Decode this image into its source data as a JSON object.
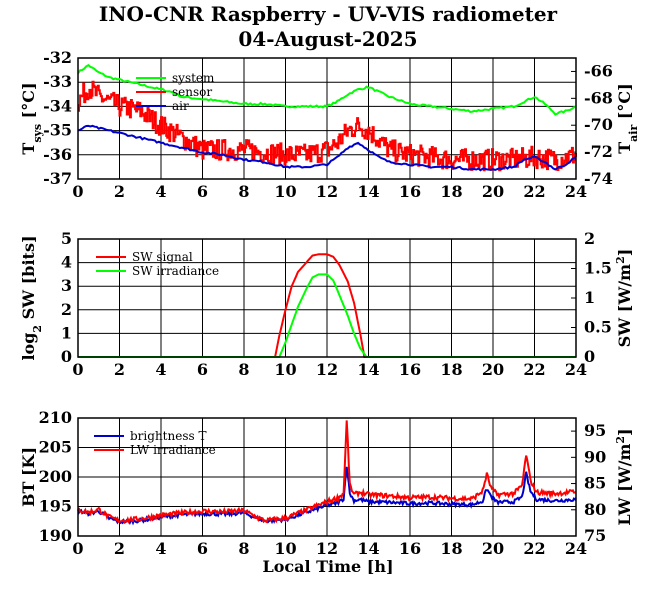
{
  "title": "INO-CNR Raspberry - UV-VIS radiometer",
  "date": "04-August-2025",
  "colors": {
    "red": "#ff0000",
    "green": "#00ff00",
    "blue": "#0000cc",
    "grid": "#000000"
  },
  "chart_data": [
    {
      "type": "line",
      "id": "temperature",
      "ylabel_left": {
        "main": "T",
        "sub": "sys",
        "unit": " [°C]"
      },
      "ylabel_right": {
        "main": "T",
        "sub": "air",
        "unit": " [°C]"
      },
      "xlim": [
        0,
        24
      ],
      "ylim_left": [
        -37,
        -32
      ],
      "ylim_right": [
        -74,
        -65
      ],
      "xticks": [
        "0",
        "2",
        "4",
        "6",
        "8",
        "10",
        "12",
        "14",
        "16",
        "18",
        "20",
        "22",
        "24"
      ],
      "yticks_left": [
        "-32",
        "-33",
        "-34",
        "-35",
        "-36",
        "-37"
      ],
      "yticks_right": [
        "-66",
        "-68",
        "-70",
        "-72",
        "-74"
      ],
      "legend": [
        "system",
        "sensor",
        "air"
      ],
      "series": [
        {
          "name": "system",
          "color": "#00ff00",
          "axis": "left",
          "x": [
            0,
            0.5,
            1,
            1.5,
            2,
            3,
            4,
            4.5,
            5,
            6,
            7,
            8,
            9,
            10,
            11,
            12,
            12.5,
            13,
            13.5,
            14,
            14.5,
            15,
            16,
            17,
            18,
            19,
            20,
            21,
            21.5,
            22,
            22.5,
            23,
            23.5,
            24
          ],
          "y": [
            -32.6,
            -32.3,
            -32.6,
            -32.8,
            -32.9,
            -33.1,
            -33.3,
            -33.4,
            -33.6,
            -33.7,
            -33.8,
            -33.9,
            -33.9,
            -34.0,
            -34.0,
            -34.0,
            -33.8,
            -33.5,
            -33.3,
            -33.2,
            -33.4,
            -33.6,
            -33.9,
            -34.0,
            -34.1,
            -34.2,
            -34.1,
            -34.0,
            -33.8,
            -33.6,
            -33.9,
            -34.3,
            -34.2,
            -34.0
          ]
        },
        {
          "name": "sensor",
          "color": "#ff0000",
          "axis": "left",
          "x": [
            0,
            0.5,
            1,
            1.5,
            2,
            3,
            4,
            5,
            6,
            7,
            8,
            9,
            10,
            11,
            12,
            12.5,
            13,
            13.5,
            14,
            14.5,
            15,
            16,
            17,
            18,
            19,
            20,
            21,
            22,
            23,
            24
          ],
          "y": [
            -33.8,
            -33.2,
            -33.6,
            -33.8,
            -34.0,
            -34.2,
            -34.8,
            -35.3,
            -35.8,
            -35.8,
            -35.8,
            -35.9,
            -36.0,
            -36.0,
            -35.8,
            -35.5,
            -35.0,
            -34.8,
            -35.0,
            -35.4,
            -35.8,
            -36.0,
            -36.1,
            -36.2,
            -36.2,
            -36.2,
            -36.2,
            -36.1,
            -36.2,
            -36.0
          ],
          "noise": 0.45
        },
        {
          "name": "air",
          "color": "#0000cc",
          "axis": "left",
          "x": [
            0,
            0.5,
            1,
            1.5,
            2,
            3,
            4,
            5,
            6,
            7,
            8,
            9,
            10,
            11,
            12,
            12.5,
            13,
            13.5,
            14,
            14.5,
            15,
            16,
            17,
            18,
            19,
            20,
            21,
            21.5,
            22,
            22.5,
            23,
            23.5,
            24
          ],
          "y": [
            -35.0,
            -34.8,
            -34.9,
            -35.0,
            -35.1,
            -35.3,
            -35.5,
            -35.7,
            -35.9,
            -36.0,
            -36.2,
            -36.3,
            -36.5,
            -36.5,
            -36.4,
            -36.1,
            -35.7,
            -35.5,
            -35.8,
            -36.1,
            -36.3,
            -36.4,
            -36.5,
            -36.5,
            -36.6,
            -36.6,
            -36.5,
            -36.2,
            -36.1,
            -36.3,
            -36.6,
            -36.4,
            -36.1
          ]
        }
      ]
    },
    {
      "type": "line",
      "id": "shortwave",
      "ylabel_left": {
        "main": "log",
        "sub": "2",
        "unit": " SW [bits]"
      },
      "ylabel_right": {
        "main": "SW [W/m",
        "sup": "2",
        "unit": "]"
      },
      "xlim": [
        0,
        24
      ],
      "ylim_left": [
        0,
        5
      ],
      "ylim_right": [
        0,
        2
      ],
      "xticks": [
        "0",
        "2",
        "4",
        "6",
        "8",
        "10",
        "12",
        "14",
        "16",
        "18",
        "20",
        "22",
        "24"
      ],
      "yticks_left": [
        "0",
        "1",
        "2",
        "3",
        "4",
        "5"
      ],
      "yticks_right": [
        "0",
        "0.5",
        "1",
        "1.5",
        "2"
      ],
      "legend": [
        "SW signal",
        "SW irradiance"
      ],
      "series": [
        {
          "name": "SW signal",
          "color": "#ff0000",
          "axis": "left",
          "x": [
            0,
            9.5,
            9.7,
            10.0,
            10.3,
            10.6,
            11.0,
            11.3,
            11.6,
            12.0,
            12.3,
            12.6,
            13.0,
            13.3,
            13.6,
            13.8,
            24
          ],
          "y": [
            0,
            0,
            0.9,
            2.0,
            3.0,
            3.6,
            4.0,
            4.3,
            4.35,
            4.35,
            4.25,
            3.9,
            3.2,
            2.3,
            1.0,
            0,
            0
          ]
        },
        {
          "name": "SW irradiance",
          "color": "#00ff00",
          "axis": "right",
          "x": [
            0,
            9.7,
            10.0,
            10.3,
            10.6,
            11.0,
            11.3,
            11.6,
            12.0,
            12.3,
            12.6,
            13.0,
            13.3,
            13.6,
            13.9,
            24
          ],
          "y": [
            0,
            0,
            0.25,
            0.55,
            0.85,
            1.15,
            1.35,
            1.4,
            1.4,
            1.3,
            1.05,
            0.7,
            0.4,
            0.15,
            0,
            0
          ]
        }
      ]
    },
    {
      "type": "line",
      "id": "longwave",
      "xlabel": "Local Time [h]",
      "ylabel_left": {
        "main": "BT [K]"
      },
      "ylabel_right": {
        "main": "LW [W/m",
        "sup": "2",
        "unit": "]"
      },
      "xlim": [
        0,
        24
      ],
      "ylim_left": [
        190,
        210
      ],
      "ylim_right": [
        75,
        97.5
      ],
      "xticks": [
        "0",
        "2",
        "4",
        "6",
        "8",
        "10",
        "12",
        "14",
        "16",
        "18",
        "20",
        "22",
        "24"
      ],
      "yticks_left": [
        "190",
        "195",
        "200",
        "205",
        "210"
      ],
      "yticks_right": [
        "75",
        "80",
        "85",
        "90",
        "95"
      ],
      "legend": [
        "brightness T",
        "LW irradiance"
      ],
      "series": [
        {
          "name": "brightness T",
          "color": "#0000cc",
          "axis": "left",
          "x": [
            0,
            0.5,
            1,
            1.5,
            2,
            3,
            4,
            5,
            6,
            7,
            8,
            8.5,
            9,
            9.5,
            10,
            11,
            12,
            12.5,
            12.8,
            12.95,
            13.1,
            13.3,
            13.6,
            14,
            15,
            16,
            17,
            18,
            19,
            19.5,
            19.7,
            19.9,
            20.2,
            21,
            21.4,
            21.6,
            21.8,
            22.1,
            23,
            24
          ],
          "y": [
            194.3,
            193.8,
            194.2,
            193.0,
            192.4,
            192.6,
            193.2,
            193.6,
            193.8,
            193.7,
            193.9,
            193.2,
            192.5,
            192.7,
            192.8,
            194.0,
            195.2,
            195.6,
            196.3,
            202.0,
            197.2,
            196.0,
            196.2,
            195.8,
            195.7,
            195.5,
            195.6,
            195.4,
            195.3,
            195.9,
            198.0,
            196.8,
            195.7,
            195.8,
            196.6,
            200.6,
            197.6,
            196.2,
            196.0,
            196.2
          ],
          "noise": 0.3
        },
        {
          "name": "LW irradiance",
          "color": "#ff0000",
          "axis": "left",
          "x": [
            0,
            0.5,
            1,
            1.5,
            2,
            3,
            4,
            5,
            6,
            7,
            8,
            8.5,
            9,
            9.5,
            10,
            11,
            12,
            12.5,
            12.8,
            12.95,
            13.1,
            13.3,
            13.6,
            14,
            15,
            16,
            17,
            18,
            19,
            19.5,
            19.7,
            19.9,
            20.2,
            21,
            21.4,
            21.6,
            21.8,
            22.1,
            23,
            24
          ],
          "y": [
            194.5,
            194.0,
            194.5,
            193.2,
            192.6,
            192.9,
            193.5,
            193.9,
            194.2,
            194.1,
            194.3,
            193.4,
            192.6,
            192.8,
            193.0,
            194.4,
            195.8,
            196.4,
            197.2,
            209.5,
            198.6,
            197.0,
            197.4,
            197.0,
            196.8,
            196.5,
            196.6,
            196.4,
            196.3,
            197.6,
            200.5,
            198.2,
            197.0,
            197.2,
            198.5,
            203.8,
            199.5,
            197.4,
            197.2,
            197.5
          ],
          "noise": 0.4
        }
      ]
    }
  ]
}
